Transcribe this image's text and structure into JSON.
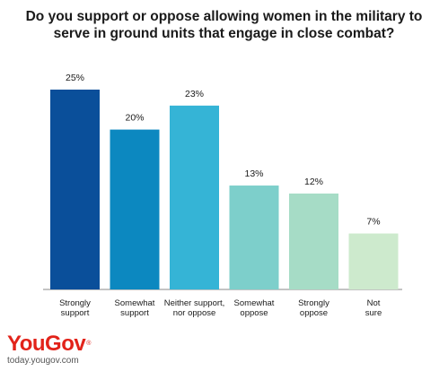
{
  "title_line1": "Do you support or oppose allowing women in the military to",
  "title_line2": "serve in ground units that engage in close combat?",
  "brand": {
    "logo": "YouGov",
    "url": "today.yougov.com"
  },
  "chart_data": {
    "type": "bar",
    "title": "Do you support or oppose allowing women in the military to serve in ground units that engage in close combat?",
    "categories": [
      [
        "Strongly",
        "support"
      ],
      [
        "Somewhat",
        "support"
      ],
      [
        "Neither support,",
        "nor oppose"
      ],
      [
        "Somewhat",
        "oppose"
      ],
      [
        "Strongly",
        "oppose"
      ],
      [
        "Not",
        "sure"
      ]
    ],
    "values": [
      25,
      20,
      23,
      13,
      12,
      7
    ],
    "value_labels": [
      "25%",
      "20%",
      "23%",
      "13%",
      "12%",
      "7%"
    ],
    "colors": [
      "#0a4f9a",
      "#0c88c0",
      "#35b4d6",
      "#7dcfcb",
      "#a6dcc6",
      "#cdeacd"
    ],
    "ylim": [
      0,
      25
    ],
    "xlabel": "",
    "ylabel": "",
    "grid": false,
    "legend": "none"
  }
}
